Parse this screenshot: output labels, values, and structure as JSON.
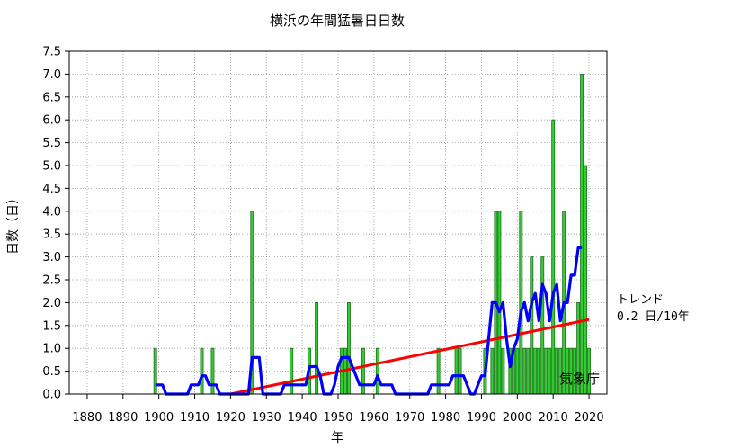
{
  "chart_data": {
    "type": "bar",
    "title": "横浜の年間猛暑日日数",
    "xlabel": "年",
    "ylabel": "日数（日）",
    "xlim": [
      1875,
      2025
    ],
    "ylim": [
      0,
      7.5
    ],
    "xticks": [
      1880,
      1890,
      1900,
      1910,
      1920,
      1930,
      1940,
      1950,
      1960,
      1970,
      1980,
      1990,
      2000,
      2010,
      2020
    ],
    "yticks": [
      "0.0",
      "0.5",
      "1.0",
      "1.5",
      "2.0",
      "2.5",
      "3.0",
      "3.5",
      "4.0",
      "4.5",
      "5.0",
      "5.5",
      "6.0",
      "6.5",
      "7.0",
      "7.5"
    ],
    "grid": true,
    "bar_color": "#33cc33",
    "moving_average_color": "#0000ff",
    "trend_color": "#ff0000",
    "bars": {
      "years": [
        1899,
        1912,
        1915,
        1926,
        1937,
        1942,
        1944,
        1951,
        1952,
        1953,
        1957,
        1961,
        1978,
        1983,
        1984,
        1991,
        1993,
        1994,
        1995,
        1996,
        1998,
        1999,
        2000,
        2001,
        2002,
        2003,
        2004,
        2005,
        2006,
        2007,
        2008,
        2009,
        2010,
        2011,
        2012,
        2013,
        2014,
        2015,
        2016,
        2017,
        2018,
        2019,
        2020
      ],
      "values": [
        1,
        1,
        1,
        4,
        1,
        1,
        2,
        1,
        1,
        2,
        1,
        1,
        1,
        1,
        1,
        1,
        1,
        4,
        4,
        1,
        1,
        1,
        1,
        4,
        1,
        1,
        3,
        1,
        1,
        3,
        1,
        1,
        6,
        1,
        1,
        4,
        1,
        1,
        1,
        2,
        7,
        5,
        1
      ]
    },
    "moving_average": {
      "years": [
        1899,
        1901,
        1902,
        1903,
        1904,
        1905,
        1906,
        1907,
        1908,
        1909,
        1910,
        1911,
        1912,
        1913,
        1914,
        1915,
        1916,
        1917,
        1918,
        1919,
        1920,
        1921,
        1922,
        1923,
        1924,
        1925,
        1926,
        1927,
        1928,
        1929,
        1930,
        1931,
        1932,
        1933,
        1934,
        1935,
        1936,
        1937,
        1938,
        1939,
        1940,
        1941,
        1942,
        1943,
        1944,
        1945,
        1946,
        1947,
        1948,
        1949,
        1950,
        1951,
        1952,
        1953,
        1954,
        1955,
        1956,
        1957,
        1958,
        1959,
        1960,
        1961,
        1962,
        1963,
        1964,
        1965,
        1966,
        1967,
        1968,
        1969,
        1970,
        1971,
        1972,
        1973,
        1974,
        1975,
        1976,
        1977,
        1978,
        1979,
        1980,
        1981,
        1982,
        1983,
        1984,
        1985,
        1986,
        1987,
        1988,
        1989,
        1990,
        1991,
        1992,
        1993,
        1994,
        1995,
        1996,
        1997,
        1998,
        1999,
        2000,
        2001,
        2002,
        2003,
        2004,
        2005,
        2006,
        2007,
        2008,
        2009,
        2010,
        2011,
        2012,
        2013,
        2014,
        2015,
        2016,
        2017,
        2018
      ],
      "values": [
        0.2,
        0.2,
        0.0,
        0.0,
        0.0,
        0.0,
        0.0,
        0.0,
        0.0,
        0.2,
        0.2,
        0.2,
        0.4,
        0.4,
        0.2,
        0.2,
        0.2,
        0.0,
        0.0,
        0.0,
        0.0,
        0.0,
        0.0,
        0.0,
        0.0,
        0.0,
        0.8,
        0.8,
        0.8,
        0.0,
        0.0,
        0.0,
        0.0,
        0.0,
        0.0,
        0.2,
        0.2,
        0.2,
        0.2,
        0.2,
        0.2,
        0.2,
        0.6,
        0.6,
        0.6,
        0.4,
        0.0,
        0.0,
        0.0,
        0.2,
        0.6,
        0.8,
        0.8,
        0.8,
        0.6,
        0.4,
        0.2,
        0.2,
        0.2,
        0.2,
        0.2,
        0.4,
        0.2,
        0.2,
        0.2,
        0.2,
        0.0,
        0.0,
        0.0,
        0.0,
        0.0,
        0.0,
        0.0,
        0.0,
        0.0,
        0.0,
        0.2,
        0.2,
        0.2,
        0.2,
        0.2,
        0.2,
        0.4,
        0.4,
        0.4,
        0.4,
        0.2,
        0.0,
        0.0,
        0.2,
        0.4,
        0.4,
        1.2,
        2.0,
        2.0,
        1.8,
        2.0,
        1.2,
        0.6,
        1.0,
        1.2,
        1.8,
        2.0,
        1.6,
        2.0,
        2.2,
        1.6,
        2.4,
        2.2,
        1.6,
        2.2,
        2.4,
        1.6,
        2.0,
        2.0,
        2.6,
        2.6,
        3.2,
        3.2
      ]
    },
    "trend_line": {
      "x": [
        1920,
        2020
      ],
      "y": [
        0.0,
        1.63
      ]
    },
    "trend_label_line1": "トレンド",
    "trend_label_line2": "0.2 日/10年",
    "source_label": "気象庁"
  }
}
